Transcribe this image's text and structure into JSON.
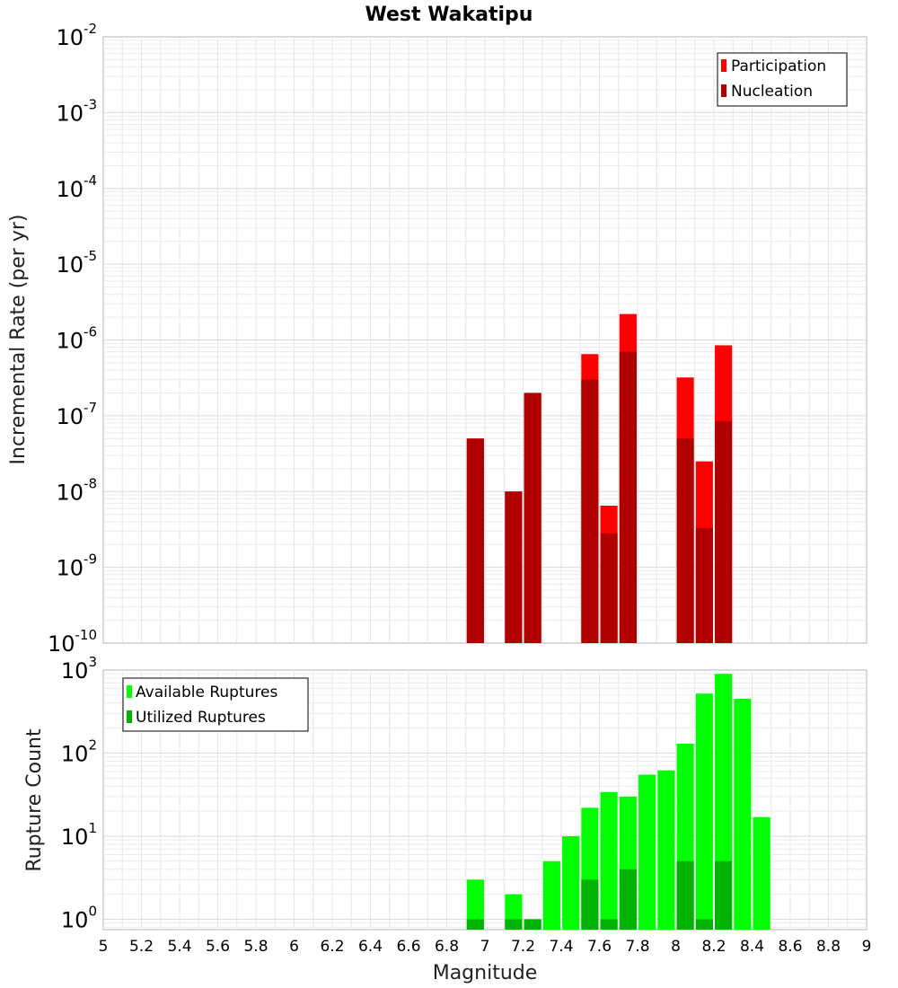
{
  "chart_data": [
    {
      "type": "bar",
      "title": "West Wakatipu",
      "xlabel": "",
      "ylabel": "Incremental Rate (per yr)",
      "y_scale": "log",
      "xlim": [
        5,
        9
      ],
      "ylim": [
        1e-10,
        0.01
      ],
      "y_ticks": [
        {
          "base": "10",
          "exp": "-10"
        },
        {
          "base": "10",
          "exp": "-9"
        },
        {
          "base": "10",
          "exp": "-8"
        },
        {
          "base": "10",
          "exp": "-7"
        },
        {
          "base": "10",
          "exp": "-6"
        },
        {
          "base": "10",
          "exp": "-5"
        },
        {
          "base": "10",
          "exp": "-4"
        },
        {
          "base": "10",
          "exp": "-3"
        },
        {
          "base": "10",
          "exp": "-2"
        }
      ],
      "grid": true,
      "legend_position": "top-right",
      "x": [
        6.95,
        7.15,
        7.25,
        7.55,
        7.65,
        7.75,
        8.05,
        8.15,
        8.25
      ],
      "series": [
        {
          "name": "Participation",
          "color": "#ff0000",
          "values": [
            5e-08,
            1e-08,
            2e-07,
            6.5e-07,
            6.5e-09,
            2.2e-06,
            3.2e-07,
            2.5e-08,
            8.5e-07
          ]
        },
        {
          "name": "Nucleation",
          "color": "#b00000",
          "values": [
            5e-08,
            1e-08,
            2e-07,
            3e-07,
            2.8e-09,
            7e-07,
            5e-08,
            3.3e-09,
            8.5e-08
          ]
        }
      ]
    },
    {
      "type": "bar",
      "title": "",
      "xlabel": "Magnitude",
      "ylabel": "Rupture Count",
      "y_scale": "log",
      "xlim": [
        5,
        9
      ],
      "ylim": [
        0.75,
        1000
      ],
      "x_ticks": [
        "5",
        "5.2",
        "5.4",
        "5.6",
        "5.8",
        "6",
        "6.2",
        "6.4",
        "6.6",
        "6.8",
        "7",
        "7.2",
        "7.4",
        "7.6",
        "7.8",
        "8",
        "8.2",
        "8.4",
        "8.6",
        "8.8",
        "9"
      ],
      "y_ticks": [
        {
          "base": "10",
          "exp": "0"
        },
        {
          "base": "10",
          "exp": "1"
        },
        {
          "base": "10",
          "exp": "2"
        },
        {
          "base": "10",
          "exp": "3"
        }
      ],
      "grid": true,
      "legend_position": "top-left",
      "x": [
        6.95,
        7.15,
        7.25,
        7.35,
        7.45,
        7.55,
        7.65,
        7.75,
        7.85,
        7.95,
        8.05,
        8.15,
        8.25,
        8.35,
        8.45
      ],
      "series": [
        {
          "name": "Available Ruptures",
          "color": "#00ff00",
          "values": [
            3,
            2,
            1,
            5,
            10,
            22,
            34,
            30,
            55,
            62,
            130,
            520,
            900,
            450,
            17
          ]
        },
        {
          "name": "Utilized Ruptures",
          "color": "#00b300",
          "values": [
            1,
            1,
            1,
            0,
            0,
            3,
            1,
            4,
            0,
            0,
            5,
            1,
            5,
            0,
            0
          ]
        }
      ]
    }
  ]
}
